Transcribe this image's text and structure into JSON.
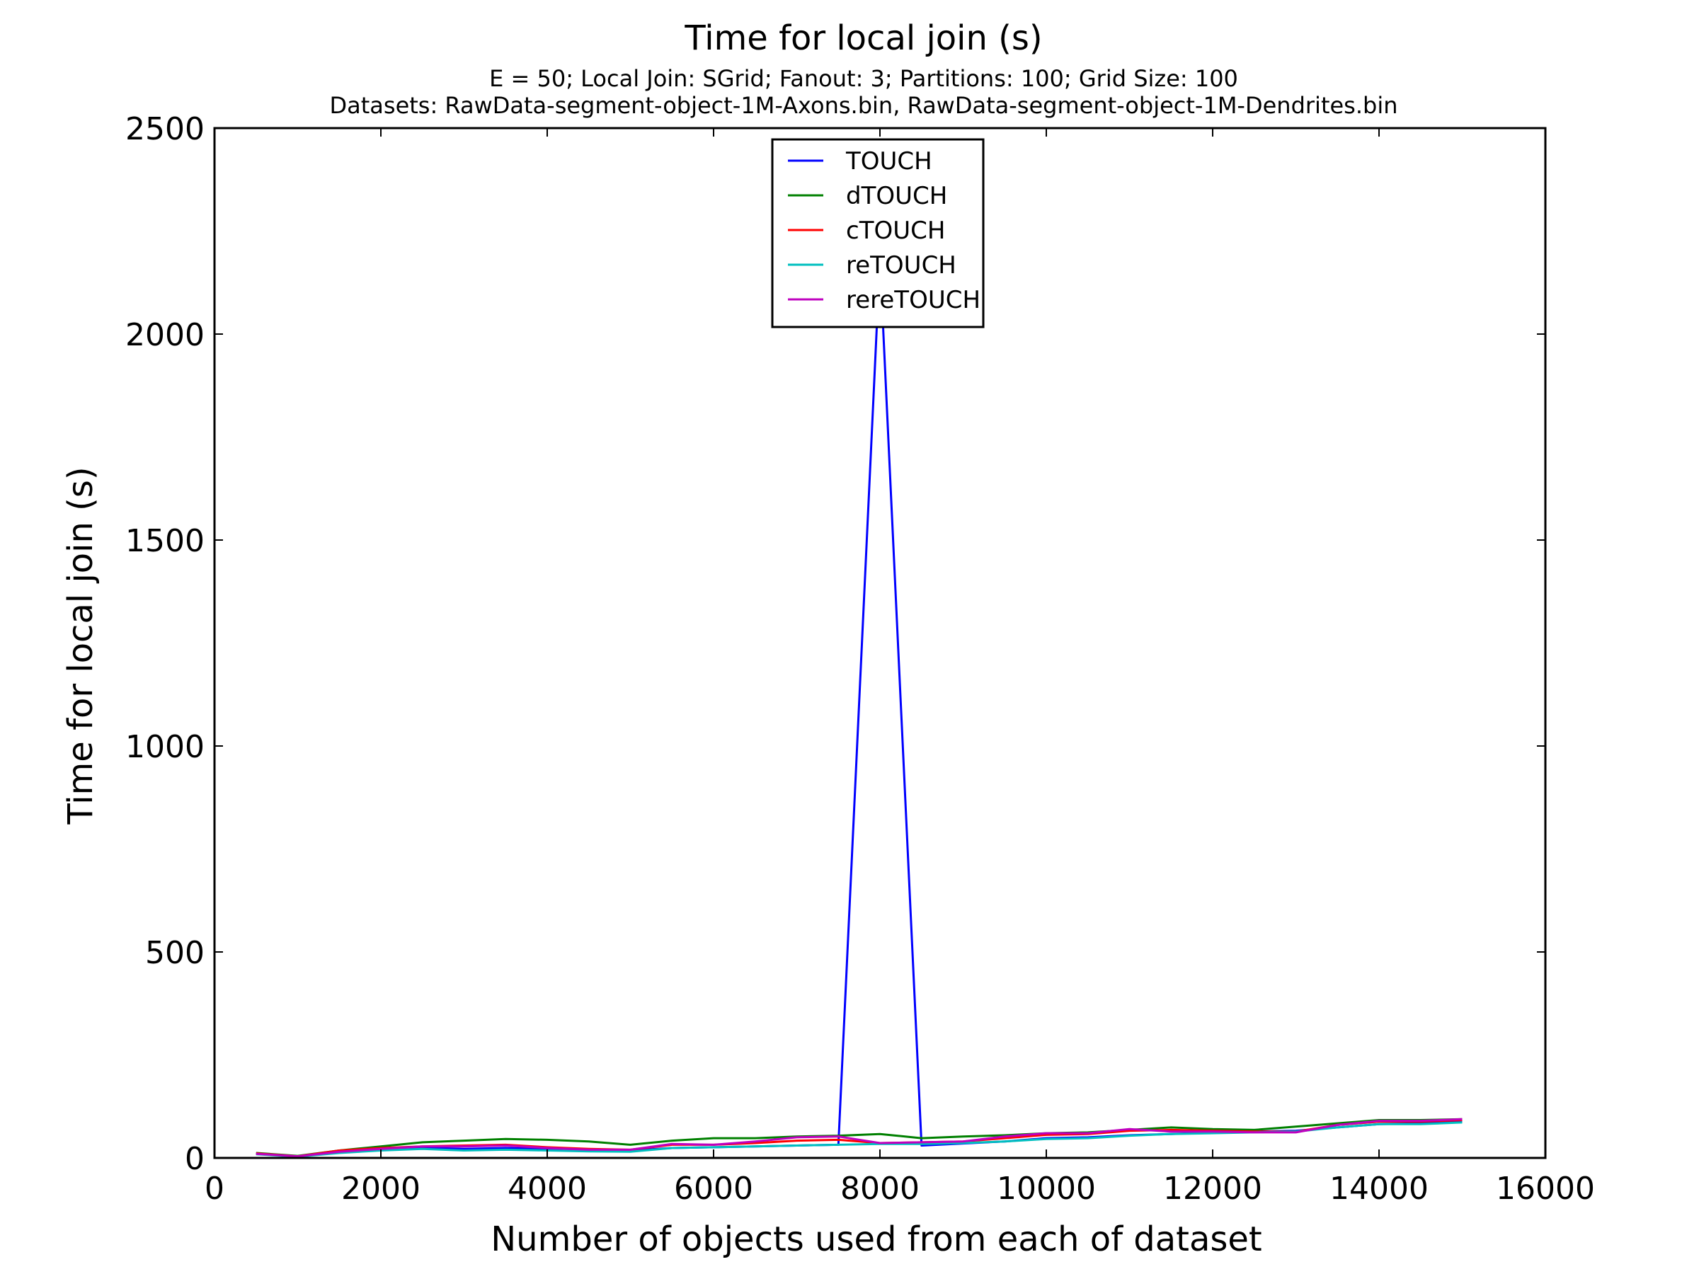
{
  "chart_data": {
    "type": "line",
    "title": "Time for local join (s)",
    "subtitle_lines": [
      "E = 50; Local Join: SGrid; Fanout: 3; Partitions: 100; Grid Size: 100",
      "Datasets: RawData-segment-object-1M-Axons.bin, RawData-segment-object-1M-Dendrites.bin"
    ],
    "xlabel": "Number of objects used from each of dataset",
    "ylabel": "Time for local join (s)",
    "xlim": [
      0,
      16000
    ],
    "ylim": [
      0,
      2500
    ],
    "xticks": [
      0,
      2000,
      4000,
      6000,
      8000,
      10000,
      12000,
      14000,
      16000
    ],
    "yticks": [
      0,
      500,
      1000,
      1500,
      2000,
      2500
    ],
    "grid": false,
    "legend_position": "top-center",
    "x": [
      500,
      1000,
      1500,
      2000,
      2500,
      3000,
      3500,
      4000,
      4500,
      5000,
      5500,
      6000,
      6500,
      7000,
      7500,
      8000,
      8500,
      9000,
      9500,
      10000,
      10500,
      11000,
      11500,
      12000,
      12500,
      13000,
      13500,
      14000,
      14500,
      15000
    ],
    "series": [
      {
        "name": "TOUCH",
        "color": "#0000ff",
        "values": [
          10,
          4,
          14,
          20,
          25,
          22,
          24,
          22,
          20,
          18,
          24,
          26,
          28,
          30,
          32,
          2180,
          30,
          35,
          40,
          48,
          50,
          55,
          58,
          62,
          64,
          66,
          74,
          82,
          84,
          88
        ]
      },
      {
        "name": "dTOUCH",
        "color": "#008000",
        "values": [
          12,
          5,
          18,
          28,
          38,
          42,
          46,
          44,
          40,
          32,
          42,
          48,
          48,
          52,
          54,
          58,
          48,
          52,
          55,
          60,
          62,
          68,
          74,
          70,
          68,
          76,
          84,
          92,
          92,
          94
        ]
      },
      {
        "name": "cTOUCH",
        "color": "#ff0000",
        "values": [
          11,
          4,
          18,
          24,
          28,
          30,
          32,
          26,
          22,
          20,
          32,
          32,
          36,
          42,
          44,
          36,
          38,
          40,
          48,
          56,
          58,
          66,
          68,
          66,
          64,
          64,
          80,
          88,
          88,
          92
        ]
      },
      {
        "name": "reTOUCH",
        "color": "#00bfbf",
        "values": [
          9,
          3,
          12,
          18,
          22,
          18,
          20,
          18,
          16,
          15,
          24,
          26,
          28,
          30,
          32,
          34,
          34,
          36,
          40,
          46,
          48,
          54,
          58,
          60,
          62,
          64,
          74,
          82,
          82,
          86
        ]
      },
      {
        "name": "rereTOUCH",
        "color": "#bf00bf",
        "values": [
          10,
          4,
          15,
          22,
          28,
          28,
          30,
          24,
          20,
          20,
          34,
          32,
          40,
          50,
          52,
          36,
          38,
          40,
          52,
          60,
          60,
          70,
          64,
          64,
          62,
          62,
          80,
          90,
          90,
          94
        ]
      }
    ]
  }
}
